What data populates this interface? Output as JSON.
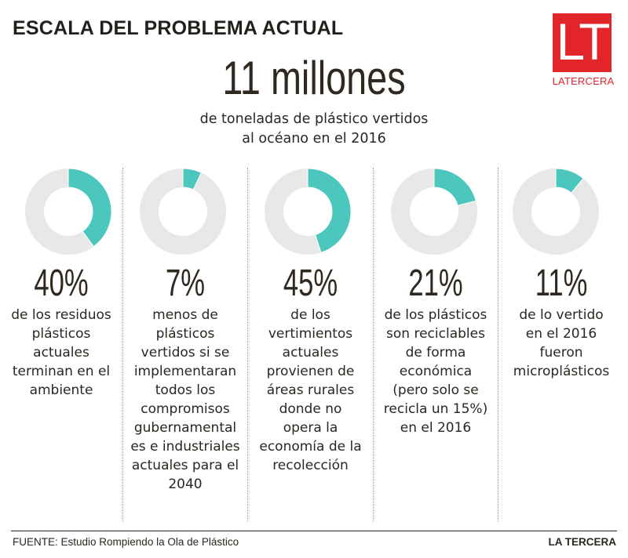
{
  "header": {
    "title": "ESCALA DEL PROBLEMA ACTUAL",
    "logo_mark": "LT",
    "logo_name": "LATERCERA"
  },
  "headline": {
    "value": "11 millones",
    "subtitle_lines": [
      "de toneladas de plástico vertidos",
      "al océano en el 2016"
    ]
  },
  "colors": {
    "accent": "#4cc7bd",
    "track": "#e8e8e8",
    "logo_red": "#e2242b",
    "text": "#2b2620"
  },
  "chart_data": {
    "type": "pie",
    "title": "ESCALA DEL PROBLEMA ACTUAL",
    "subtitle": "11 millones de toneladas de plástico vertidos al océano en el 2016",
    "unit": "%",
    "series": [
      {
        "name": "residuos-ambiente",
        "value": 40,
        "label": "40%",
        "description": [
          "de los residuos",
          "plásticos",
          "actuales",
          "terminan en el",
          "ambiente"
        ]
      },
      {
        "name": "compromisos-2040",
        "value": 7,
        "label": "7%",
        "description": [
          "menos de",
          "plásticos",
          "vertidos si se",
          "implementaran",
          "todos los",
          "compromisos",
          "gubernamental",
          "es e industriales",
          "actuales para el",
          "2040"
        ]
      },
      {
        "name": "areas-rurales",
        "value": 45,
        "label": "45%",
        "description": [
          "de los",
          "vertimientos",
          "actuales",
          "provienen de",
          "áreas rurales",
          "donde no",
          "opera la",
          "economía de la",
          "recolección"
        ]
      },
      {
        "name": "reciclables",
        "value": 21,
        "label": "21%",
        "description": [
          "de los plásticos",
          "son reciclables",
          "de forma",
          "económica",
          "(pero solo se",
          "recicla un 15%)",
          "en el 2016"
        ]
      },
      {
        "name": "microplasticos",
        "value": 11,
        "label": "11%",
        "description": [
          "de lo vertido",
          "en el 2016",
          "fueron",
          "microplásticos"
        ]
      }
    ]
  },
  "footer": {
    "source": "FUENTE: Estudio Rompiendo la Ola de Plástico",
    "brand": "LA TERCERA"
  }
}
